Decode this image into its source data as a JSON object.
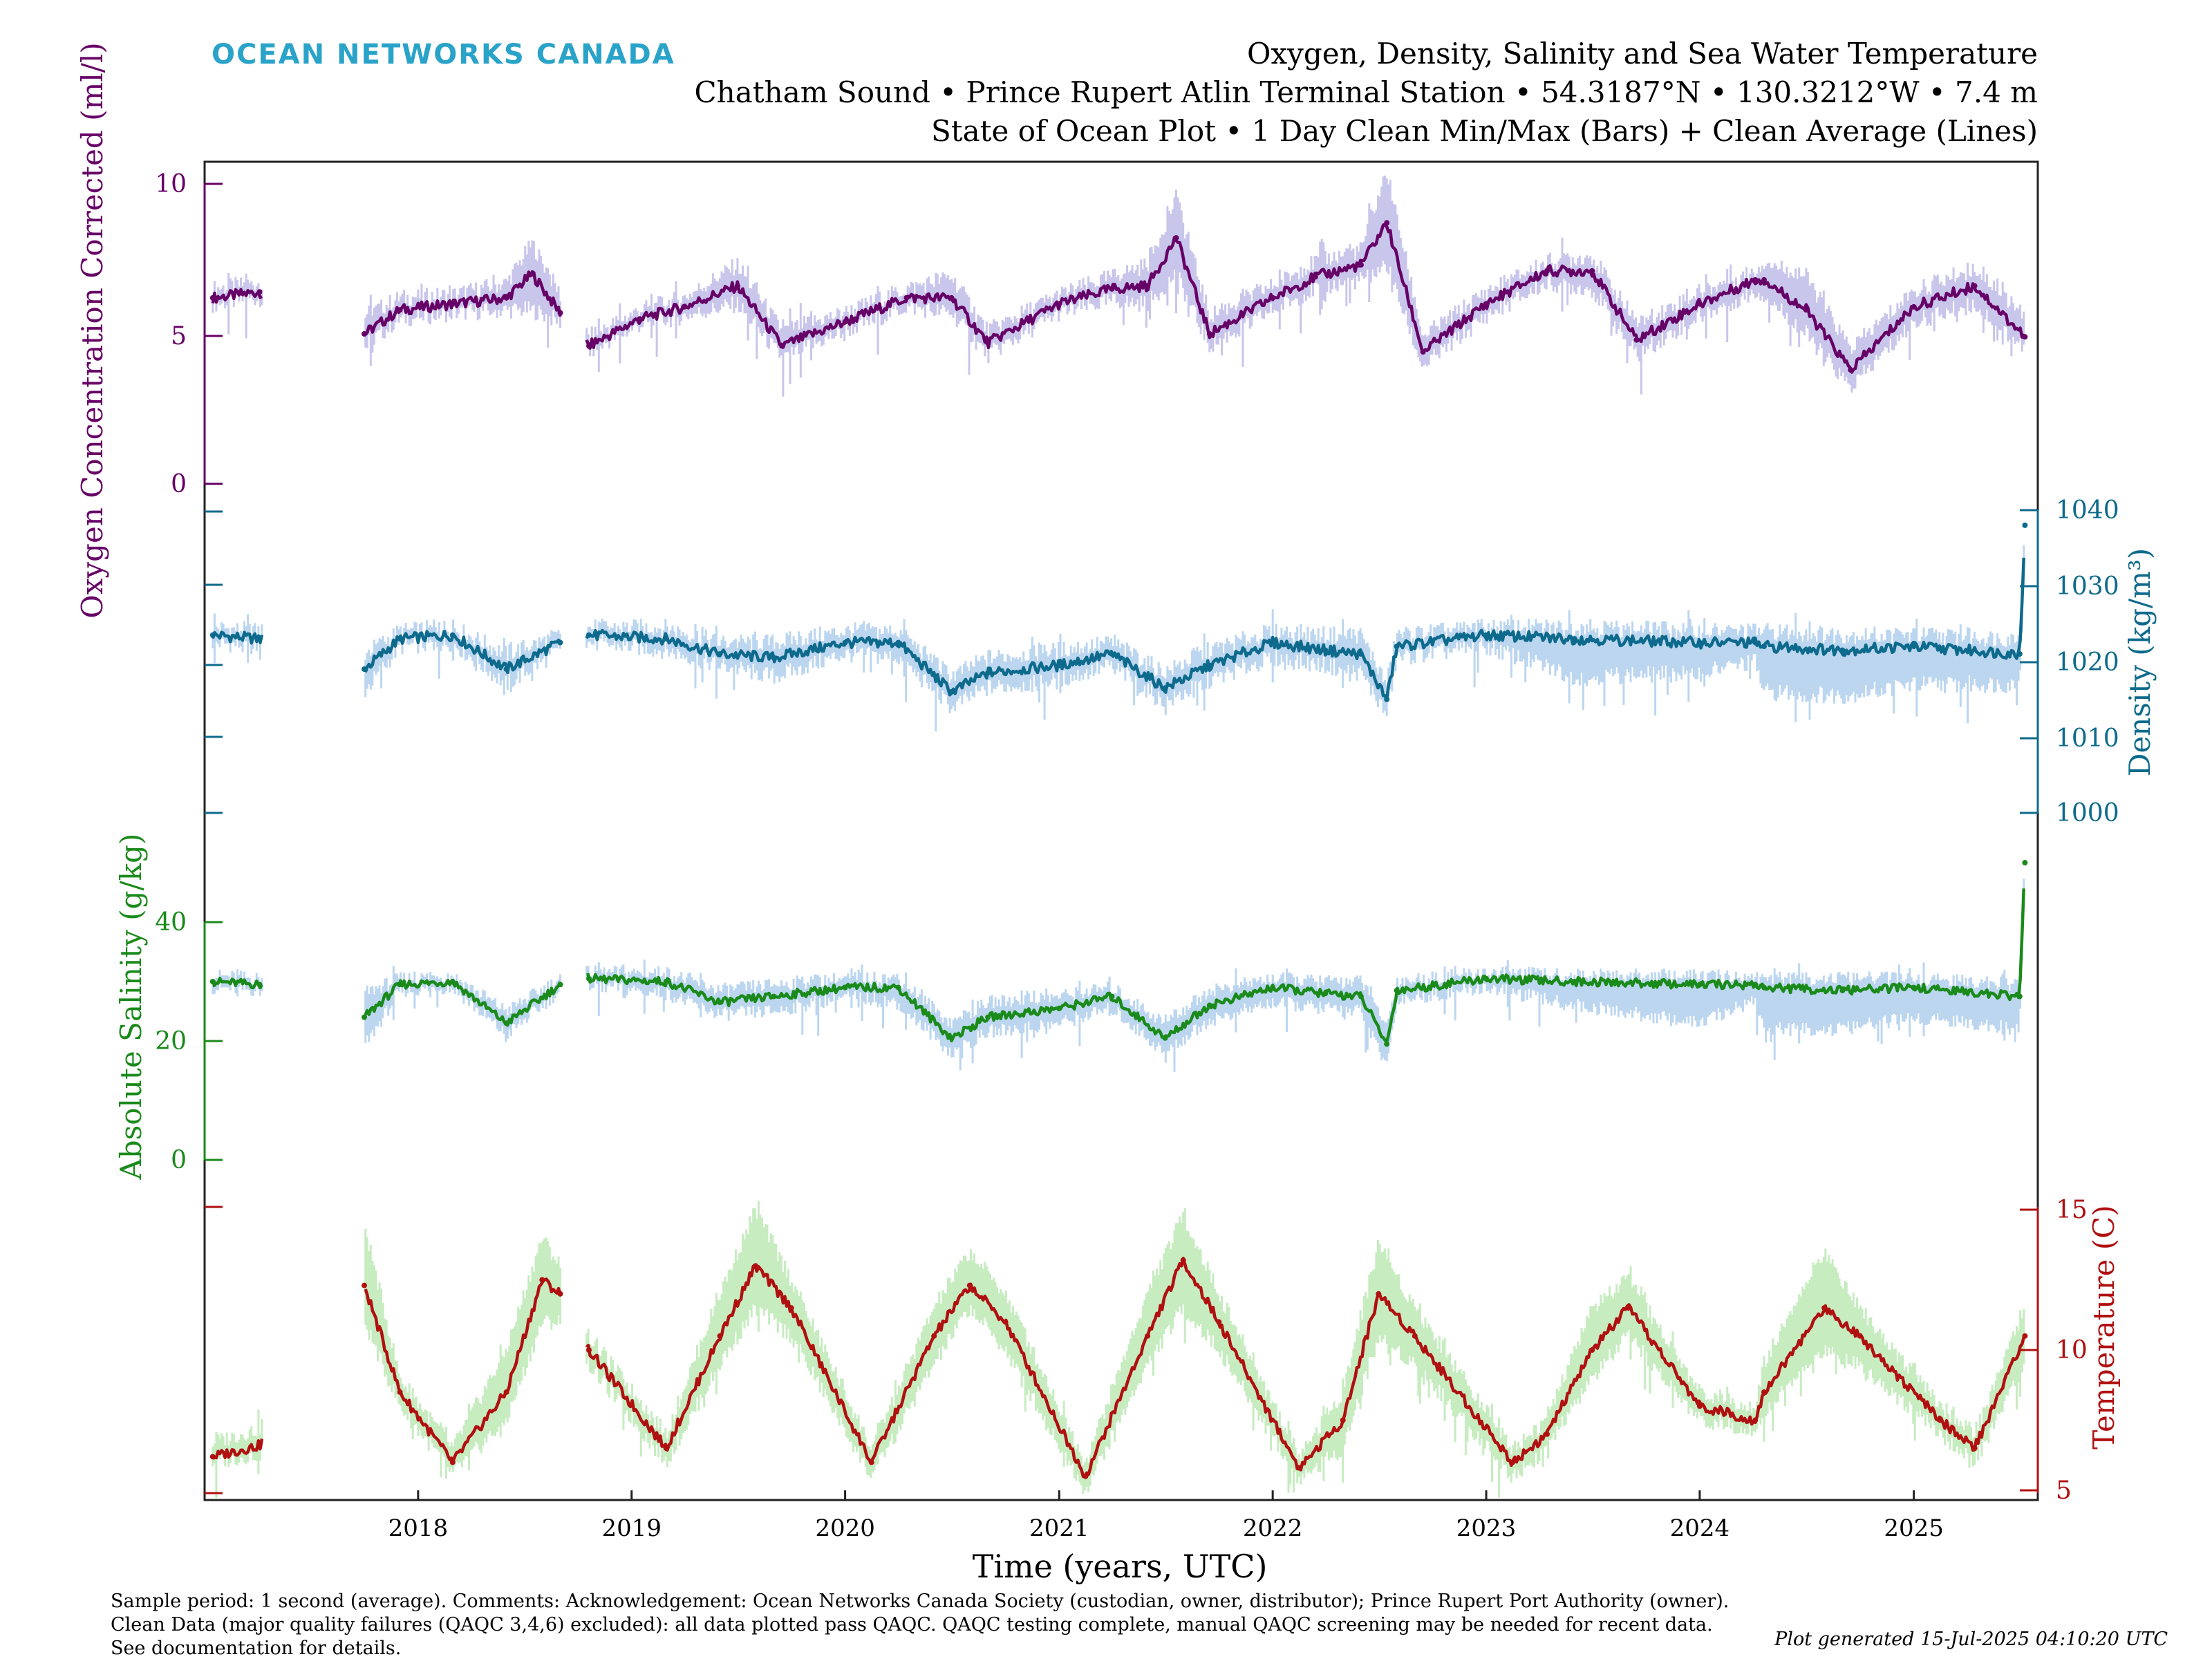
{
  "brand": "OCEAN NETWORKS CANADA",
  "title_lines": [
    "Oxygen, Density, Salinity and Sea Water Temperature",
    "Chatham Sound • Prince Rupert Atlin Terminal Station • 54.3187°N • 130.3212°W • 7.4 m",
    "State of Ocean Plot • 1 Day Clean Min/Max (Bars) + Clean Average (Lines)"
  ],
  "footer_lines": [
    "Sample period: 1 second (average). Comments: Acknowledgement: Ocean Networks Canada Society (custodian, owner, distributor); Prince Rupert Port Authority (owner).",
    "Clean Data (major quality failures (QAQC 3,4,6) excluded): all data plotted pass QAQC. QAQC testing complete, manual QAQC screening may be needed for recent data.",
    "See documentation for details."
  ],
  "generated": "Plot generated 15-Jul-2025 04:10:20 UTC",
  "colors": {
    "oxygen": "#660066",
    "oxygen_range": "#c9c6ec",
    "density": "#0d6a8c",
    "density_range": "#bcd6f0",
    "salinity": "#1a8a1a",
    "salinity_range": "#bcd6f0",
    "temperature": "#b01010",
    "temperature_range": "#c6ecc0",
    "brand": "#2aa3c9"
  },
  "chart_data": {
    "type": "line",
    "xlabel": "Time (years, UTC)",
    "x_tick_labels": [
      "2018",
      "2019",
      "2020",
      "2021",
      "2022",
      "2023",
      "2024",
      "2025"
    ],
    "xlim": [
      "2017-01-01",
      "2025-08-01"
    ],
    "data_gaps": [
      [
        "2017-04-10",
        "2017-10-01"
      ],
      [
        "2018-09-01",
        "2018-10-15"
      ]
    ],
    "series": [
      {
        "name": "Oxygen Concentration Corrected",
        "ylabel": "Oxygen Concentration Corrected (ml/l)",
        "axis_side": "left",
        "ylim": [
          0,
          10
        ],
        "ytick_labels": [
          "0",
          "5",
          "10"
        ],
        "x": [
          "2017-01-15",
          "2017-04-05",
          "2017-10-01",
          "2017-12-01",
          "2018-03-01",
          "2018-06-01",
          "2018-07-15",
          "2018-09-01",
          "2018-10-20",
          "2019-01-15",
          "2019-04-01",
          "2019-07-01",
          "2019-09-15",
          "2020-01-01",
          "2020-04-15",
          "2020-07-01",
          "2020-09-01",
          "2021-01-01",
          "2021-04-01",
          "2021-06-01",
          "2021-07-20",
          "2021-09-15",
          "2022-01-01",
          "2022-03-15",
          "2022-06-01",
          "2022-07-15",
          "2022-09-15",
          "2023-01-01",
          "2023-04-15",
          "2023-07-01",
          "2023-09-15",
          "2024-01-01",
          "2024-04-05",
          "2024-04-20",
          "2024-07-01",
          "2024-09-15",
          "2025-01-01",
          "2025-04-15",
          "2025-07-10"
        ],
        "y": [
          6.2,
          6.4,
          5.0,
          5.8,
          6.0,
          6.2,
          7.0,
          5.7,
          4.6,
          5.5,
          5.9,
          6.6,
          4.6,
          5.4,
          6.2,
          6.2,
          4.7,
          6.0,
          6.5,
          6.6,
          8.2,
          5.0,
          6.2,
          6.9,
          7.3,
          8.7,
          4.4,
          6.0,
          7.1,
          7.1,
          4.8,
          6.0,
          6.8,
          6.8,
          5.8,
          3.8,
          5.9,
          6.6,
          4.9
        ],
        "range_min": [
          6.0,
          6.2,
          4.6,
          5.5,
          5.7,
          5.8,
          5.8,
          5.4,
          4.4,
          5.3,
          5.6,
          6.0,
          4.2,
          5.1,
          5.9,
          5.7,
          4.3,
          5.7,
          6.1,
          6.0,
          7.0,
          4.6,
          5.8,
          6.5,
          6.8,
          7.3,
          3.9,
          5.6,
          6.7,
          6.5,
          4.3,
          5.6,
          6.4,
          6.3,
          5.0,
          3.2,
          5.4,
          6.0,
          4.5
        ],
        "range_max": [
          6.5,
          6.7,
          5.6,
          6.2,
          6.3,
          6.7,
          8.0,
          6.3,
          4.9,
          5.8,
          6.2,
          7.3,
          5.1,
          5.7,
          6.5,
          6.9,
          5.1,
          6.3,
          6.9,
          7.3,
          9.5,
          5.6,
          6.6,
          7.4,
          7.8,
          10.4,
          4.9,
          6.4,
          7.4,
          7.6,
          5.3,
          6.4,
          7.1,
          7.4,
          6.9,
          4.5,
          6.4,
          7.2,
          5.6
        ]
      },
      {
        "name": "Density",
        "ylabel": "Density (kg/m³)",
        "axis_side": "right",
        "ylim": [
          1000,
          1040
        ],
        "ytick_labels": [
          "1000",
          "1010",
          "1020",
          "1030",
          "1040"
        ],
        "x": [
          "2017-01-15",
          "2017-04-05",
          "2017-10-01",
          "2017-12-01",
          "2018-03-01",
          "2018-06-01",
          "2018-09-01",
          "2018-10-20",
          "2019-03-01",
          "2019-06-01",
          "2019-09-01",
          "2020-01-01",
          "2020-04-01",
          "2020-07-01",
          "2020-09-01",
          "2021-01-01",
          "2021-04-01",
          "2021-07-01",
          "2021-09-15",
          "2022-01-01",
          "2022-04-01",
          "2022-06-01",
          "2022-07-15",
          "2022-08-01",
          "2023-01-01",
          "2023-06-01",
          "2024-01-01",
          "2024-04-05",
          "2024-04-20",
          "2024-09-01",
          "2025-01-01",
          "2025-07-01",
          "2025-07-10"
        ],
        "y": [
          1023.5,
          1023.0,
          1019.0,
          1023.0,
          1023.5,
          1019.0,
          1022.5,
          1023.5,
          1023.0,
          1021.0,
          1020.5,
          1022.5,
          1022.5,
          1016.0,
          1018.5,
          1019.5,
          1021.0,
          1016.5,
          1019.5,
          1022.5,
          1021.5,
          1021.0,
          1015.0,
          1022.0,
          1023.5,
          1023.0,
          1022.5,
          1022.5,
          1022.0,
          1021.5,
          1022.0,
          1021.0,
          1038.0
        ],
        "range_min": [
          1022.5,
          1022.0,
          1016.0,
          1022.0,
          1022.5,
          1017.0,
          1021.5,
          1022.5,
          1021.5,
          1019.5,
          1018.0,
          1021.0,
          1020.5,
          1014.0,
          1016.5,
          1017.5,
          1019.5,
          1014.5,
          1017.5,
          1020.5,
          1019.5,
          1018.5,
          1013.0,
          1020.5,
          1022.0,
          1018.0,
          1018.5,
          1020.0,
          1016.0,
          1015.5,
          1017.0,
          1017.0,
          1035.0
        ],
        "range_max": [
          1024.5,
          1024.0,
          1021.0,
          1024.0,
          1024.5,
          1021.0,
          1023.5,
          1024.5,
          1024.5,
          1022.5,
          1022.5,
          1024.0,
          1024.0,
          1018.0,
          1020.5,
          1021.5,
          1022.5,
          1018.5,
          1021.5,
          1024.0,
          1023.5,
          1023.5,
          1017.0,
          1023.5,
          1024.5,
          1024.5,
          1024.0,
          1024.0,
          1024.0,
          1023.5,
          1023.5,
          1023.0,
          1040.0
        ]
      },
      {
        "name": "Absolute Salinity",
        "ylabel": "Absolute Salinity (g/kg)",
        "axis_side": "left",
        "ylim": [
          0,
          40
        ],
        "ytick_labels": [
          "0",
          "20",
          "40"
        ],
        "x": [
          "2017-01-15",
          "2017-04-05",
          "2017-10-01",
          "2017-12-01",
          "2018-03-01",
          "2018-06-01",
          "2018-09-01",
          "2018-10-20",
          "2019-03-01",
          "2019-06-01",
          "2019-09-01",
          "2020-01-01",
          "2020-04-01",
          "2020-07-01",
          "2020-09-01",
          "2021-01-01",
          "2021-04-01",
          "2021-07-01",
          "2021-09-15",
          "2022-01-01",
          "2022-04-01",
          "2022-06-01",
          "2022-07-15",
          "2022-08-01",
          "2023-01-01",
          "2023-06-01",
          "2024-01-01",
          "2024-04-05",
          "2024-04-20",
          "2024-09-01",
          "2025-01-01",
          "2025-07-01",
          "2025-07-10"
        ],
        "y": [
          30.0,
          29.5,
          24.0,
          29.5,
          30.0,
          23.0,
          29.5,
          30.5,
          30.0,
          26.5,
          27.5,
          29.0,
          29.0,
          20.5,
          24.0,
          25.5,
          27.5,
          20.5,
          26.0,
          29.0,
          28.0,
          27.5,
          19.5,
          28.5,
          30.5,
          30.0,
          29.5,
          29.5,
          29.0,
          28.5,
          29.0,
          27.5,
          50.0
        ],
        "range_min": [
          29.0,
          28.5,
          19.0,
          28.5,
          29.0,
          21.0,
          28.5,
          29.5,
          28.0,
          24.5,
          25.0,
          27.5,
          26.5,
          18.0,
          21.5,
          23.0,
          25.5,
          18.0,
          23.5,
          26.5,
          25.5,
          25.0,
          16.0,
          27.0,
          29.0,
          26.0,
          23.0,
          27.0,
          22.0,
          22.0,
          24.0,
          22.0,
          47.0
        ],
        "range_max": [
          31.0,
          30.5,
          28.0,
          30.5,
          31.0,
          25.0,
          30.5,
          31.5,
          31.5,
          28.5,
          29.5,
          30.5,
          30.5,
          23.0,
          26.5,
          27.5,
          29.0,
          23.0,
          28.5,
          30.5,
          30.0,
          30.0,
          22.5,
          30.0,
          31.5,
          31.0,
          31.0,
          30.5,
          30.5,
          30.5,
          30.5,
          29.5,
          51.0
        ]
      },
      {
        "name": "Temperature",
        "ylabel": "Temperature (C)",
        "axis_side": "right",
        "ylim": [
          5,
          15
        ],
        "ytick_labels": [
          "5",
          "10",
          "15"
        ],
        "x": [
          "2017-01-15",
          "2017-04-05",
          "2017-10-01",
          "2017-12-01",
          "2018-03-01",
          "2018-06-01",
          "2018-08-01",
          "2018-09-01",
          "2018-10-20",
          "2019-03-01",
          "2019-06-01",
          "2019-08-01",
          "2019-10-01",
          "2020-02-15",
          "2020-06-01",
          "2020-08-01",
          "2020-10-01",
          "2021-02-15",
          "2021-06-01",
          "2021-08-01",
          "2021-10-01",
          "2022-02-15",
          "2022-05-01",
          "2022-07-01",
          "2022-09-01",
          "2023-02-15",
          "2023-04-15",
          "2023-07-01",
          "2023-09-01",
          "2024-01-01",
          "2024-04-05",
          "2024-04-20",
          "2024-08-01",
          "2024-10-01",
          "2025-02-15",
          "2025-04-15",
          "2025-07-10"
        ],
        "y": [
          6.2,
          6.6,
          12.3,
          8.5,
          6.0,
          8.5,
          12.5,
          12.0,
          10.0,
          6.5,
          10.5,
          13.0,
          11.5,
          6.0,
          10.5,
          12.3,
          11.0,
          5.5,
          10.5,
          13.2,
          11.0,
          5.8,
          7.5,
          12.0,
          10.5,
          6.0,
          7.0,
          10.0,
          11.5,
          8.0,
          7.5,
          8.5,
          11.5,
          10.5,
          7.5,
          6.5,
          10.5
        ],
        "range_min": [
          6.0,
          6.3,
          11.0,
          8.0,
          5.6,
          7.5,
          11.0,
          11.0,
          9.5,
          6.0,
          9.5,
          11.5,
          10.5,
          5.5,
          9.5,
          11.5,
          10.0,
          5.0,
          9.5,
          11.5,
          10.0,
          5.4,
          6.5,
          10.5,
          9.5,
          5.5,
          6.5,
          9.0,
          10.5,
          7.5,
          7.2,
          7.8,
          10.0,
          9.5,
          7.0,
          6.0,
          9.5
        ],
        "range_max": [
          6.7,
          7.2,
          14.5,
          9.0,
          6.5,
          10.0,
          14.0,
          13.0,
          10.5,
          7.0,
          12.0,
          15.0,
          12.5,
          6.5,
          11.5,
          13.5,
          12.0,
          6.0,
          12.0,
          14.8,
          12.0,
          6.2,
          8.5,
          13.8,
          11.5,
          6.5,
          7.5,
          11.5,
          12.5,
          8.5,
          8.0,
          9.5,
          13.5,
          11.5,
          8.0,
          7.0,
          11.5
        ]
      }
    ]
  }
}
